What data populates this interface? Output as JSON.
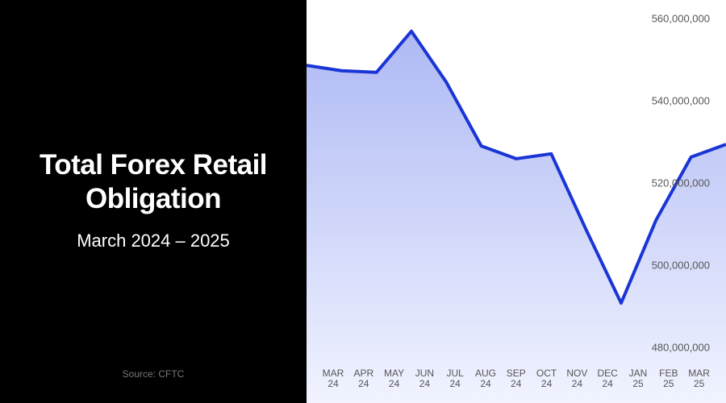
{
  "chart_data": {
    "type": "area",
    "title": "Total Forex Retail Obligation",
    "subtitle": "March 2024 – 2025",
    "source": "Source: CFTC",
    "categories": [
      "MAR 24",
      "APR 24",
      "MAY 24",
      "JUN 24",
      "JUL 24",
      "AUG 24",
      "SEP 24",
      "OCT 24",
      "NOV 24",
      "DEC 24",
      "JAN 25",
      "FEB 25",
      "MAR 25"
    ],
    "values": [
      548800000,
      547500000,
      547100000,
      557100000,
      544700000,
      529200000,
      526100000,
      527300000,
      508800000,
      491000000,
      511200000,
      526500000,
      529600000
    ],
    "color": "#1a35d6",
    "ylim": [
      466700000,
      564700000
    ],
    "yticks": [
      {
        "value": 480000000,
        "label": "480,000,000"
      },
      {
        "value": 500000000,
        "label": "500,000,000"
      },
      {
        "value": 520000000,
        "label": "520,000,000"
      },
      {
        "value": 540000000,
        "label": "540,000,000"
      },
      {
        "value": 560000000,
        "label": "560,000,000"
      }
    ]
  }
}
